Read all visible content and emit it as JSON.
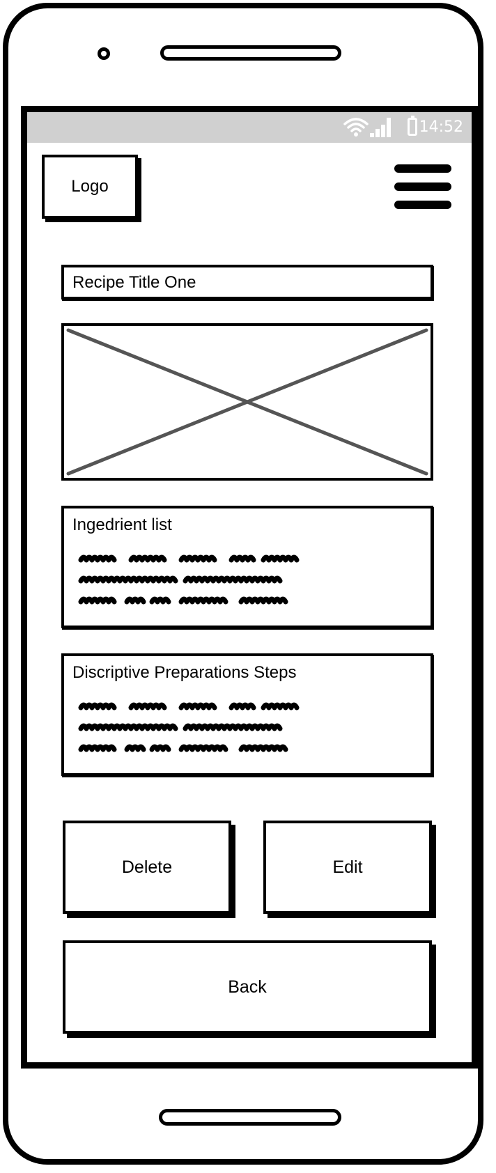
{
  "status_bar": {
    "time": "14:52",
    "icons": [
      "wifi-icon",
      "signal-icon",
      "battery-icon"
    ]
  },
  "header": {
    "logo_label": "Logo",
    "menu_icon": "hamburger-menu-icon"
  },
  "recipe": {
    "title": "Recipe Title One",
    "image": "image-placeholder",
    "ingredients_heading": "Ingedrient list",
    "steps_heading": "Discriptive Preparations Steps"
  },
  "actions": {
    "delete_label": "Delete",
    "edit_label": "Edit",
    "back_label": "Back"
  },
  "colors": {
    "status_bar": "#d0d0d0",
    "stroke": "#000000",
    "placeholder_cross": "#555555",
    "background": "#ffffff"
  }
}
